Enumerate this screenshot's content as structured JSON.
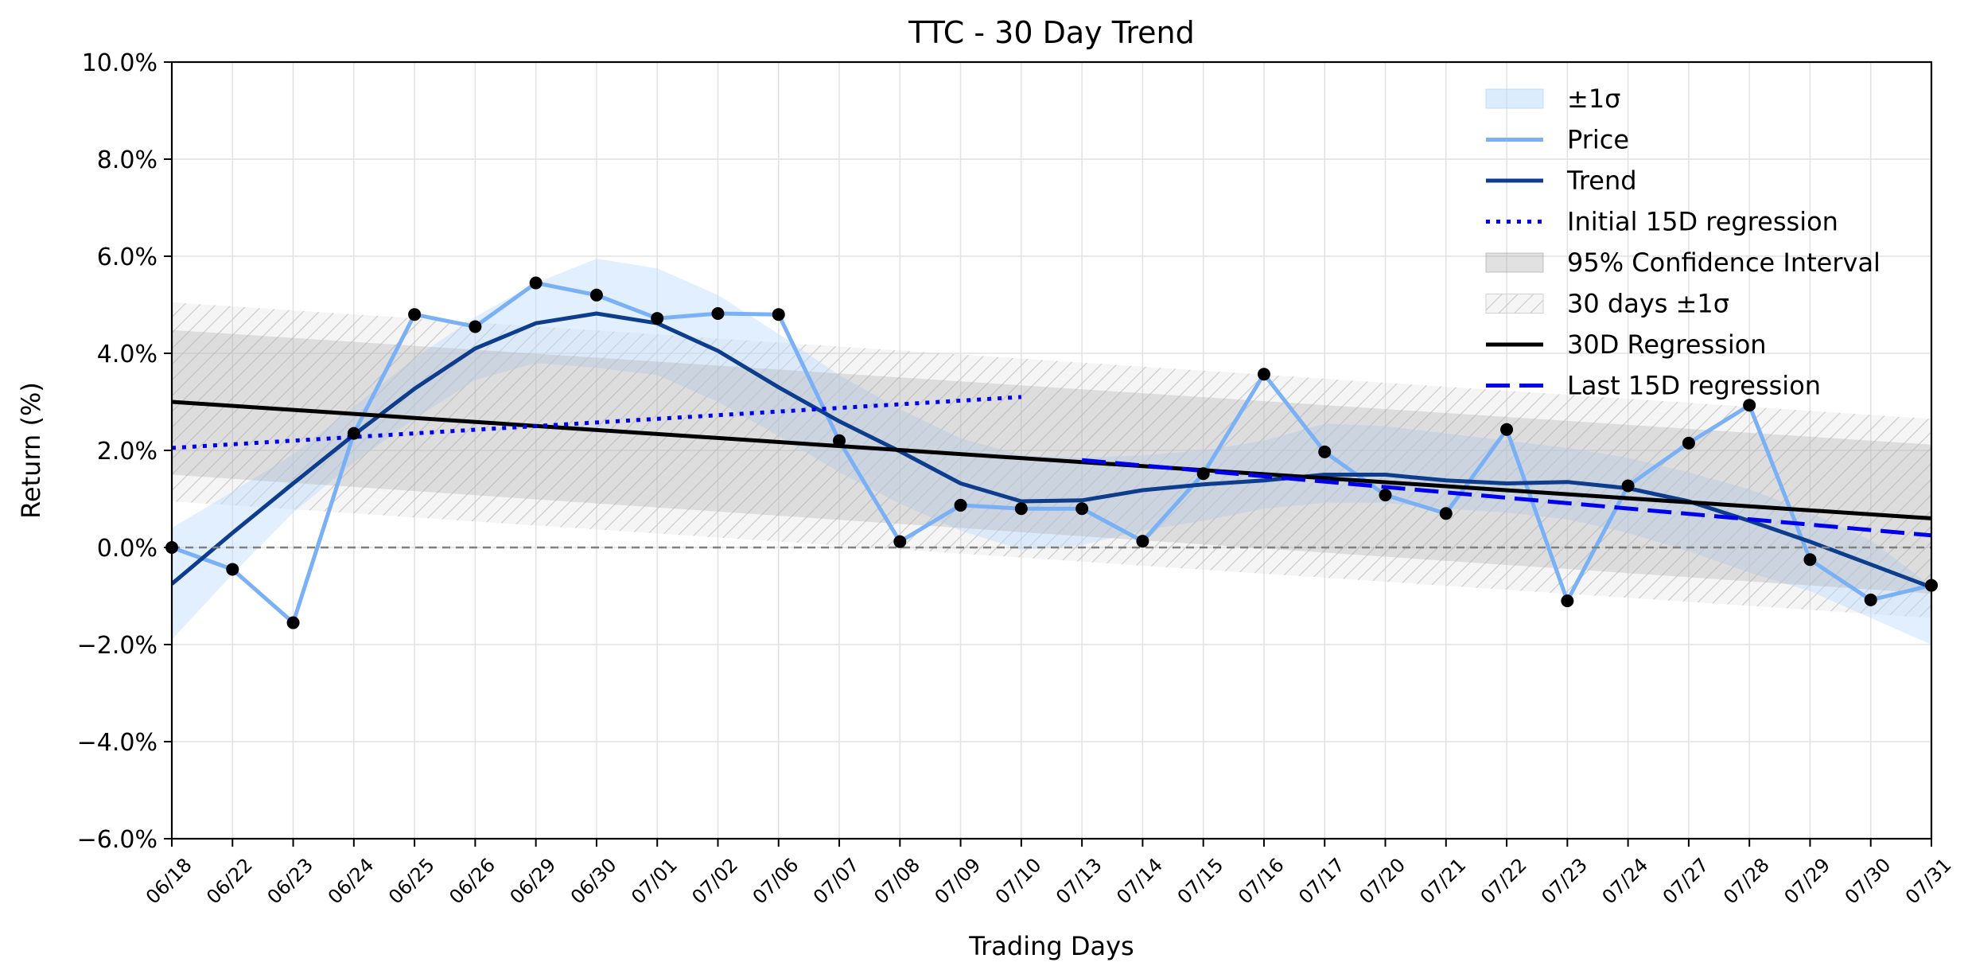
{
  "chart_data": {
    "type": "line",
    "title": "TTC - 30 Day Trend",
    "xlabel": "Trading Days",
    "ylabel": "Return (%)",
    "ylim": [
      -6.0,
      10.0
    ],
    "yticks": [
      -6,
      -4,
      -2,
      0,
      2,
      4,
      6,
      8,
      10
    ],
    "ytick_labels": [
      "−6.0%",
      "−4.0%",
      "−2.0%",
      "0.0%",
      "2.0%",
      "4.0%",
      "6.0%",
      "8.0%",
      "10.0%"
    ],
    "categories": [
      "06/18",
      "06/22",
      "06/23",
      "06/24",
      "06/25",
      "06/26",
      "06/29",
      "06/30",
      "07/01",
      "07/02",
      "07/06",
      "07/07",
      "07/08",
      "07/09",
      "07/10",
      "07/13",
      "07/14",
      "07/15",
      "07/16",
      "07/17",
      "07/20",
      "07/21",
      "07/22",
      "07/23",
      "07/24",
      "07/27",
      "07/28",
      "07/29",
      "07/30",
      "07/31"
    ],
    "grid": true,
    "legend_position": "top-right",
    "zero_line": 0,
    "series": [
      {
        "name": "Price",
        "kind": "line-markers",
        "color": "#7ab0f5",
        "values": [
          0.0,
          -0.45,
          -1.55,
          2.35,
          4.8,
          4.55,
          5.45,
          5.2,
          4.72,
          4.82,
          4.8,
          2.2,
          0.12,
          0.87,
          0.8,
          0.8,
          0.13,
          1.52,
          3.57,
          1.97,
          1.08,
          0.7,
          2.43,
          -1.1,
          1.27,
          2.15,
          2.93,
          -0.25,
          -1.08,
          -0.78
        ]
      },
      {
        "name": "Trend",
        "kind": "line",
        "color": "#0d3d8c",
        "values": [
          -0.75,
          0.3,
          1.32,
          2.32,
          3.27,
          4.1,
          4.62,
          4.82,
          4.62,
          4.05,
          3.3,
          2.6,
          1.98,
          1.32,
          0.95,
          0.97,
          1.18,
          1.3,
          1.38,
          1.5,
          1.5,
          1.38,
          1.32,
          1.35,
          1.22,
          0.95,
          0.55,
          0.12,
          -0.35,
          -0.82
        ]
      },
      {
        "name": "30D Regression",
        "kind": "line",
        "color": "#000000",
        "x": [
          "06/18",
          "07/31"
        ],
        "values": [
          3.0,
          0.6
        ]
      },
      {
        "name": "Initial 15D regression",
        "kind": "dotted",
        "color": "#0000ee",
        "x": [
          "06/18",
          "07/10"
        ],
        "values": [
          2.05,
          3.1
        ]
      },
      {
        "name": "Last 15D regression",
        "kind": "dashed",
        "color": "#0000ee",
        "x": [
          "07/13",
          "07/31"
        ],
        "values": [
          1.8,
          0.25
        ]
      },
      {
        "name": "±1σ",
        "kind": "band",
        "color": "#dcecfd",
        "lower": [
          -1.9,
          -0.55,
          0.72,
          1.75,
          2.65,
          3.45,
          3.8,
          3.7,
          3.55,
          3.0,
          2.3,
          1.55,
          0.9,
          0.35,
          -0.05,
          0.05,
          0.35,
          0.55,
          0.8,
          0.92,
          0.92,
          0.8,
          0.72,
          0.58,
          0.3,
          -0.08,
          -0.52,
          -0.9,
          -1.45,
          -2.0
        ],
        "upper": [
          0.4,
          1.15,
          1.92,
          2.9,
          3.9,
          4.75,
          5.45,
          5.95,
          5.75,
          5.2,
          4.4,
          3.55,
          2.85,
          2.25,
          1.9,
          1.85,
          1.9,
          2.0,
          2.2,
          2.55,
          2.5,
          2.35,
          2.2,
          2.05,
          1.85,
          1.55,
          1.2,
          0.72,
          0.15,
          -0.8
        ]
      },
      {
        "name": "95% Confidence Interval",
        "kind": "band",
        "color": "#bdbdbd",
        "x": [
          "06/18",
          "07/31"
        ],
        "lower": [
          1.5,
          -0.95
        ],
        "upper": [
          4.48,
          2.12
        ]
      },
      {
        "name": "30 days ±1σ",
        "kind": "hatched-band",
        "color": "#c8c8c8",
        "x": [
          "06/18",
          "07/31"
        ],
        "lower": [
          0.95,
          -1.45
        ],
        "upper": [
          5.05,
          2.65
        ]
      }
    ],
    "legend": [
      "±1σ",
      "Price",
      "Trend",
      "Initial 15D regression",
      "95% Confidence Interval",
      "30 days ±1σ",
      "30D Regression",
      "Last 15D regression"
    ]
  }
}
